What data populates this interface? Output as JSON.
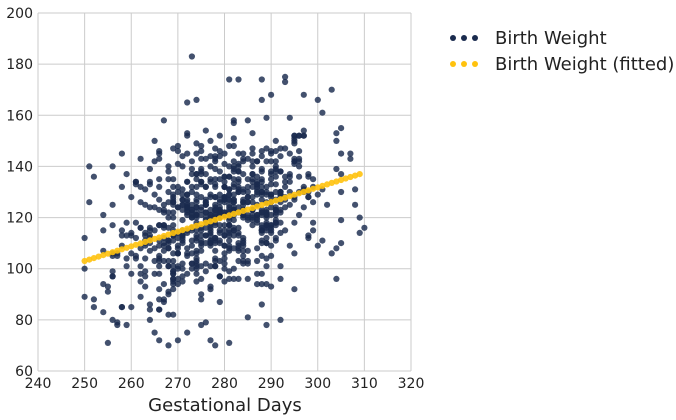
{
  "chart_data": {
    "type": "scatter",
    "xlabel": "Gestational Days",
    "ylabel": "",
    "xlim": [
      240,
      320
    ],
    "ylim": [
      60,
      200
    ],
    "xticks": [
      240,
      250,
      260,
      270,
      280,
      290,
      300,
      310,
      320
    ],
    "yticks": [
      60,
      80,
      100,
      120,
      140,
      160,
      180,
      200
    ],
    "grid": true,
    "legend_position": "outside-top-right",
    "colors": {
      "observed": "#1a2b4e",
      "fitted": "#ffc20e",
      "grid": "#cbcbcb"
    },
    "series": [
      {
        "name": "Birth Weight",
        "seed": 12345,
        "count": 780,
        "x_range": [
          250,
          310
        ],
        "x_mean": 279,
        "x_sd": 11,
        "slope": 0.58,
        "intercept": -42,
        "resid_sd": 15,
        "points": [
          [
            251,
            140
          ],
          [
            252,
            136
          ],
          [
            251,
            126
          ],
          [
            250,
            112
          ],
          [
            250,
            100
          ],
          [
            252,
            88
          ],
          [
            254,
            83
          ],
          [
            255,
            71
          ],
          [
            256,
            80
          ],
          [
            257,
            78
          ],
          [
            259,
            78
          ],
          [
            258,
            85
          ],
          [
            258,
            145
          ],
          [
            259,
            137
          ],
          [
            262,
            143
          ],
          [
            266,
            146
          ],
          [
            265,
            150
          ],
          [
            267,
            158
          ],
          [
            264,
            80
          ],
          [
            265,
            75
          ],
          [
            266,
            72
          ],
          [
            268,
            70
          ],
          [
            270,
            72
          ],
          [
            272,
            75
          ],
          [
            277,
            72
          ],
          [
            278,
            70
          ],
          [
            281,
            71
          ],
          [
            285,
            81
          ],
          [
            289,
            78
          ],
          [
            292,
            80
          ],
          [
            272,
            165
          ],
          [
            273,
            183
          ],
          [
            281,
            174
          ],
          [
            283,
            174
          ],
          [
            288,
            174
          ],
          [
            293,
            175
          ],
          [
            293,
            173
          ],
          [
            297,
            168
          ],
          [
            300,
            166
          ],
          [
            301,
            161
          ],
          [
            303,
            170
          ],
          [
            304,
            150
          ],
          [
            305,
            155
          ],
          [
            307,
            145
          ],
          [
            307,
            143
          ],
          [
            308,
            131
          ],
          [
            308,
            125
          ],
          [
            309,
            120
          ],
          [
            310,
            116
          ],
          [
            309,
            114
          ],
          [
            304,
            108
          ],
          [
            303,
            106
          ],
          [
            301,
            111
          ],
          [
            299,
            115
          ]
        ]
      },
      {
        "name": "Birth Weight (fitted)",
        "x_start": 250,
        "x_end": 309,
        "y_start": 103,
        "y_end": 137,
        "count": 60
      }
    ]
  }
}
